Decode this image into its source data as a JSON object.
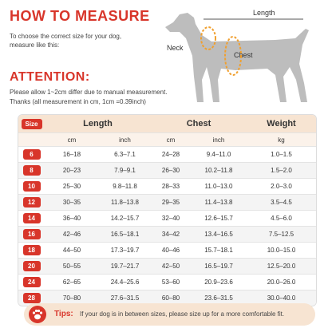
{
  "header": {
    "title": "HOW TO MEASURE",
    "description": "To choose the correct size for your dog, measure like this:"
  },
  "diagram": {
    "length": "Length",
    "neck": "Neck",
    "chest": "Chest"
  },
  "attention": {
    "title": "ATTENTION:",
    "lines": [
      "Please allow 1~2cm differ due to manual measurement.",
      "Thanks (all measurement in cm, 1cm =0.39inch)"
    ]
  },
  "table": {
    "headers": [
      "Size",
      "Length",
      "Chest",
      "Weight"
    ],
    "subheaders": [
      "cm",
      "inch",
      "cm",
      "inch",
      "kg"
    ],
    "rows": [
      [
        "6",
        "16–18",
        "6.3–7.1",
        "24–28",
        "9.4–11.0",
        "1.0–1.5"
      ],
      [
        "8",
        "20–23",
        "7.9–9.1",
        "26–30",
        "10.2–11.8",
        "1.5–2.0"
      ],
      [
        "10",
        "25–30",
        "9.8–11.8",
        "28–33",
        "11.0–13.0",
        "2.0–3.0"
      ],
      [
        "12",
        "30–35",
        "11.8–13.8",
        "29–35",
        "11.4–13.8",
        "3.5–4.5"
      ],
      [
        "14",
        "36–40",
        "14.2–15.7",
        "32–40",
        "12.6–15.7",
        "4.5–6.0"
      ],
      [
        "16",
        "42–46",
        "16.5–18.1",
        "34–42",
        "13.4–16.5",
        "7.5–12.5"
      ],
      [
        "18",
        "44–50",
        "17.3–19.7",
        "40–46",
        "15.7–18.1",
        "10.0–15.0"
      ],
      [
        "20",
        "50–55",
        "19.7–21.7",
        "42–50",
        "16.5–19.7",
        "12.5–20.0"
      ],
      [
        "24",
        "62–65",
        "24.4–25.6",
        "53–60",
        "20.9–23.6",
        "20.0–26.0"
      ],
      [
        "28",
        "70–80",
        "27.6–31.5",
        "60–80",
        "23.6–31.5",
        "30.0–40.0"
      ]
    ]
  },
  "tips": {
    "label": "Tips:",
    "text": "If your dog is in between sizes, please size up for a more comfortable fit."
  }
}
